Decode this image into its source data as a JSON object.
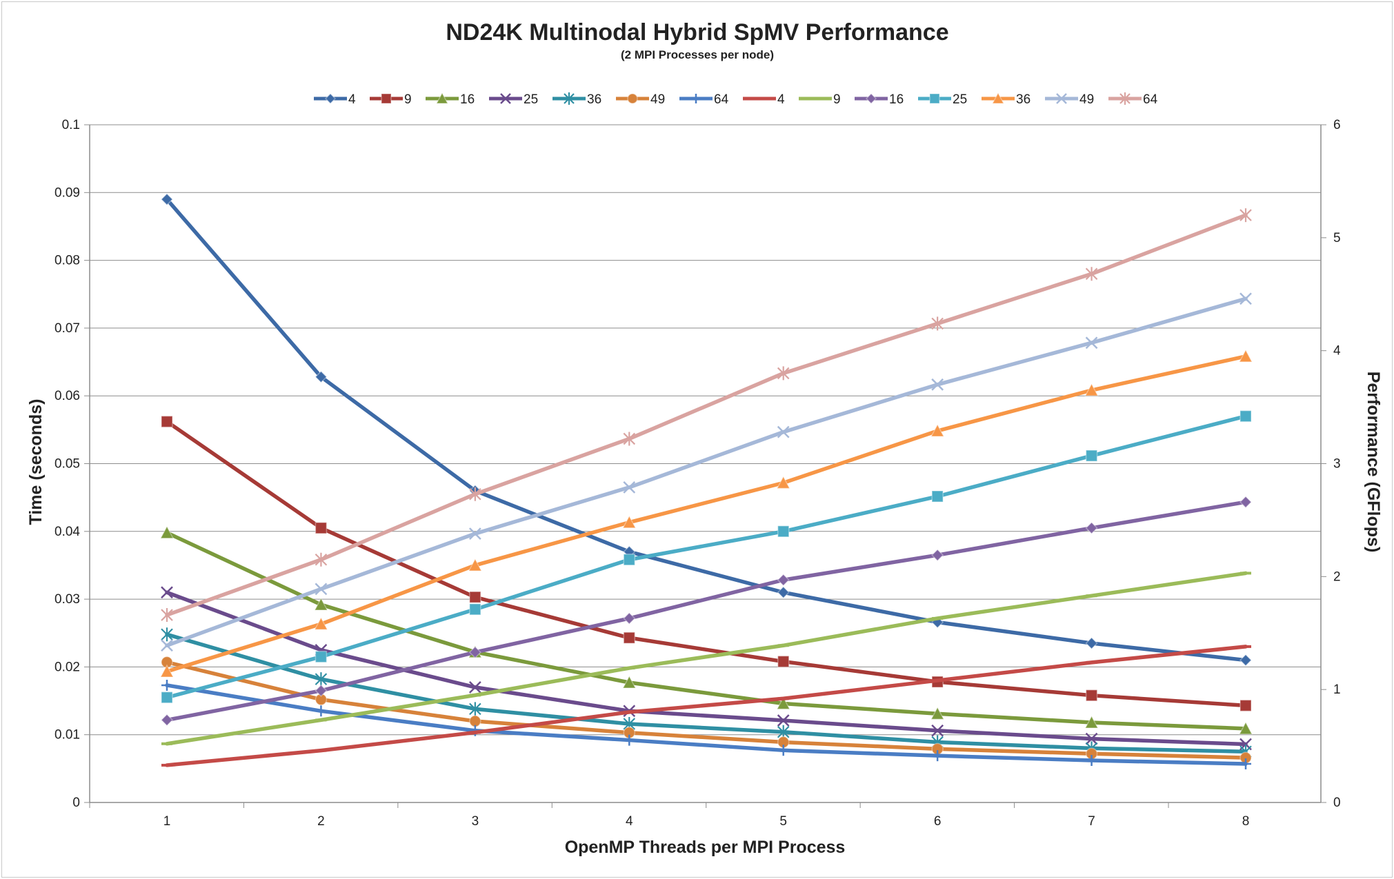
{
  "chart_data": {
    "type": "line",
    "title": "ND24K Multinodal Hybrid SpMV Performance",
    "subtitle": "(2 MPI Processes per node)",
    "xlabel": "OpenMP Threads per MPI Process",
    "ylabel_left": "Time (seconds)",
    "ylabel_right": "Performance (GFlops)",
    "x": [
      1,
      2,
      3,
      4,
      5,
      6,
      7,
      8
    ],
    "x_ticks": [
      "1",
      "2",
      "3",
      "4",
      "5",
      "6",
      "7",
      "8"
    ],
    "ylim_left": [
      0,
      0.1
    ],
    "ylim_right": [
      0,
      6
    ],
    "y_ticks_left": [
      "0",
      "0.01",
      "0.02",
      "0.03",
      "0.04",
      "0.05",
      "0.06",
      "0.07",
      "0.08",
      "0.09",
      "0.1"
    ],
    "y_ticks_right": [
      "0",
      "1",
      "2",
      "3",
      "4",
      "5",
      "6"
    ],
    "grid": true,
    "legend_position": "top",
    "series": [
      {
        "name": "4",
        "axis": "left",
        "color": "#3d6aa6",
        "marker": "diamond",
        "values": [
          0.089,
          0.0628,
          0.046,
          0.037,
          0.031,
          0.0266,
          0.0235,
          0.021
        ]
      },
      {
        "name": "9",
        "axis": "left",
        "color": "#a63a36",
        "marker": "square",
        "values": [
          0.0562,
          0.0405,
          0.0303,
          0.0243,
          0.0208,
          0.0178,
          0.0158,
          0.0143
        ]
      },
      {
        "name": "16",
        "axis": "left",
        "color": "#7b9a3c",
        "marker": "triangle",
        "values": [
          0.0398,
          0.0292,
          0.0222,
          0.0177,
          0.0146,
          0.0131,
          0.0118,
          0.0109
        ]
      },
      {
        "name": "25",
        "axis": "left",
        "color": "#6a4b8c",
        "marker": "x",
        "values": [
          0.031,
          0.0225,
          0.017,
          0.0135,
          0.0121,
          0.0106,
          0.0094,
          0.0086
        ]
      },
      {
        "name": "36",
        "axis": "left",
        "color": "#2f8fa3",
        "marker": "star",
        "values": [
          0.0248,
          0.0182,
          0.0138,
          0.0116,
          0.0104,
          0.0089,
          0.008,
          0.0075
        ]
      },
      {
        "name": "49",
        "axis": "left",
        "color": "#d7823a",
        "marker": "circle",
        "values": [
          0.0207,
          0.0152,
          0.012,
          0.0103,
          0.0089,
          0.0079,
          0.0072,
          0.0066
        ]
      },
      {
        "name": "64",
        "axis": "left",
        "color": "#4a7dc4",
        "marker": "plus",
        "values": [
          0.0173,
          0.0135,
          0.0106,
          0.0092,
          0.0077,
          0.0069,
          0.0062,
          0.0057
        ]
      },
      {
        "name": "4",
        "axis": "right",
        "color": "#c44a47",
        "marker": "dash",
        "values": [
          0.33,
          0.46,
          0.62,
          0.8,
          0.92,
          1.08,
          1.24,
          1.38
        ]
      },
      {
        "name": "9",
        "axis": "right",
        "color": "#9bbb59",
        "marker": "dash",
        "values": [
          0.52,
          0.73,
          0.95,
          1.19,
          1.39,
          1.63,
          1.83,
          2.03
        ]
      },
      {
        "name": "16",
        "axis": "right",
        "color": "#8064a2",
        "marker": "diamond",
        "values": [
          0.73,
          0.99,
          1.33,
          1.63,
          1.97,
          2.19,
          2.43,
          2.66
        ]
      },
      {
        "name": "25",
        "axis": "right",
        "color": "#4bacc6",
        "marker": "square",
        "values": [
          0.93,
          1.29,
          1.71,
          2.15,
          2.4,
          2.71,
          3.07,
          3.42
        ]
      },
      {
        "name": "36",
        "axis": "right",
        "color": "#f79646",
        "marker": "triangle",
        "values": [
          1.16,
          1.58,
          2.1,
          2.48,
          2.83,
          3.29,
          3.65,
          3.95
        ]
      },
      {
        "name": "49",
        "axis": "right",
        "color": "#a5b8d8",
        "marker": "x",
        "values": [
          1.39,
          1.89,
          2.38,
          2.79,
          3.28,
          3.7,
          4.07,
          4.46
        ]
      },
      {
        "name": "64",
        "axis": "right",
        "color": "#d9a3a0",
        "marker": "star",
        "values": [
          1.66,
          2.15,
          2.73,
          3.22,
          3.8,
          4.24,
          4.68,
          5.2
        ]
      }
    ]
  }
}
